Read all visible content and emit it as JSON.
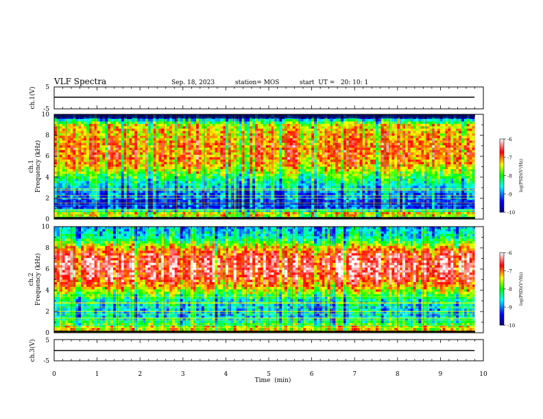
{
  "header": {
    "title": "VLF Spectra",
    "date": "Sep. 18, 2023",
    "station": "station= MOS",
    "start": "start  UT =   20: 10: 1"
  },
  "colorbar": {
    "label": "log(PSD)(V²/Hz)",
    "ticks": [
      "-6",
      "-7",
      "-8",
      "-9",
      "-10"
    ]
  },
  "chart_data": [
    {
      "type": "line",
      "panel": "ch1-voltage",
      "ylabel": "ch.1(V)",
      "ylim": [
        -5,
        5
      ],
      "yticks": [
        "5",
        "-5"
      ],
      "xlim": [
        0,
        10
      ],
      "series": [
        {
          "x": [
            0,
            9.8
          ],
          "values": [
            -0.2,
            -0.2
          ]
        }
      ]
    },
    {
      "type": "heatmap",
      "panel": "ch1-spectrogram",
      "ylabel": "ch.1\nFrequency (kHz)",
      "ylim": [
        0,
        10
      ],
      "yticks": [
        "0",
        "2",
        "4",
        "6",
        "8",
        "10"
      ],
      "xlim": [
        0,
        10
      ],
      "x_end": 9.8,
      "z_range": [
        -10,
        -6
      ],
      "colormap": [
        "#000080",
        "#0000ff",
        "#00ffff",
        "#00ff00",
        "#ffff00",
        "#ff0000",
        "#ffffff"
      ],
      "profile_khz": [
        0,
        0.5,
        1,
        1.5,
        2,
        2.5,
        3,
        3.5,
        4,
        4.5,
        5,
        5.5,
        6,
        6.5,
        7,
        7.5,
        8,
        8.5,
        9,
        9.5,
        10
      ],
      "profile_db": [
        -8.5,
        -7.0,
        -9.2,
        -9.3,
        -9.0,
        -8.9,
        -8.6,
        -8.3,
        -8.0,
        -7.6,
        -7.2,
        -7.0,
        -6.9,
        -6.9,
        -6.9,
        -7.0,
        -7.1,
        -7.2,
        -7.4,
        -8.6,
        -9.8
      ]
    },
    {
      "type": "heatmap",
      "panel": "ch2-spectrogram",
      "ylabel": "ch.2\nFrequency (kHz)",
      "ylim": [
        0,
        10
      ],
      "yticks": [
        "0",
        "2",
        "4",
        "6",
        "8",
        "10"
      ],
      "xlim": [
        0,
        10
      ],
      "x_end": 9.8,
      "z_range": [
        -10,
        -6
      ],
      "colormap": [
        "#000080",
        "#0000ff",
        "#00ffff",
        "#00ff00",
        "#ffff00",
        "#ff0000",
        "#ffffff"
      ],
      "profile_khz": [
        0,
        0.5,
        1,
        1.5,
        2,
        2.5,
        3,
        3.5,
        4,
        4.5,
        5,
        5.5,
        6,
        6.5,
        7,
        7.5,
        8,
        8.5,
        9,
        9.5,
        10
      ],
      "profile_db": [
        -7.2,
        -7.4,
        -8.2,
        -8.6,
        -8.7,
        -8.6,
        -8.4,
        -8.0,
        -7.5,
        -7.0,
        -6.7,
        -6.5,
        -6.4,
        -6.4,
        -6.5,
        -6.7,
        -7.2,
        -7.9,
        -8.4,
        -8.6,
        -8.8
      ]
    },
    {
      "type": "line",
      "panel": "ch3-voltage",
      "ylabel": "ch.3(V)",
      "ylim": [
        -5,
        5
      ],
      "yticks": [
        "5",
        "-5"
      ],
      "xlim": [
        0,
        10
      ],
      "series": [
        {
          "x": [
            0,
            9.8
          ],
          "values": [
            -0.8,
            -0.8
          ]
        }
      ]
    }
  ],
  "xaxis": {
    "label": "Time  (min)",
    "ticks": [
      "0",
      "1",
      "2",
      "3",
      "4",
      "5",
      "6",
      "7",
      "8",
      "9",
      "10"
    ]
  }
}
